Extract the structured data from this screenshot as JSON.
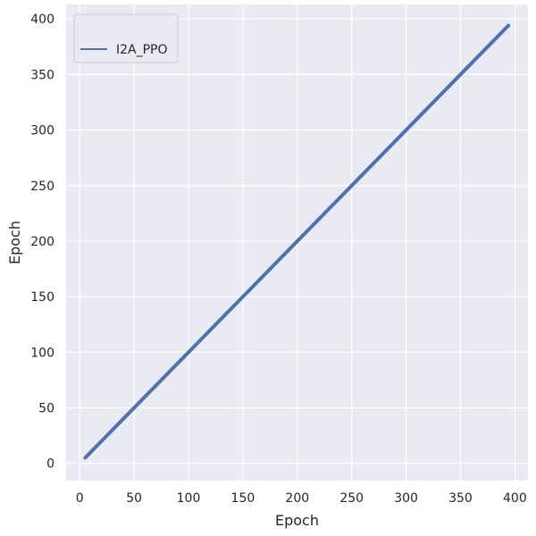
{
  "chart_data": {
    "type": "line",
    "title": "",
    "xlabel": "Epoch",
    "ylabel": "Epoch",
    "xlim": [
      -12.5,
      412
    ],
    "ylim": [
      -15.5,
      413
    ],
    "xticks": [
      0,
      50,
      100,
      150,
      200,
      250,
      300,
      350,
      400
    ],
    "yticks": [
      0,
      50,
      100,
      150,
      200,
      250,
      300,
      350,
      400
    ],
    "grid": true,
    "legend_position": "top-left",
    "background": "#eaeaf2",
    "grid_color": "#ffffff",
    "series": [
      {
        "name": "I2A_PPO",
        "color": "#4c72b0",
        "x": [
          5,
          394
        ],
        "y": [
          5,
          394
        ]
      }
    ]
  }
}
